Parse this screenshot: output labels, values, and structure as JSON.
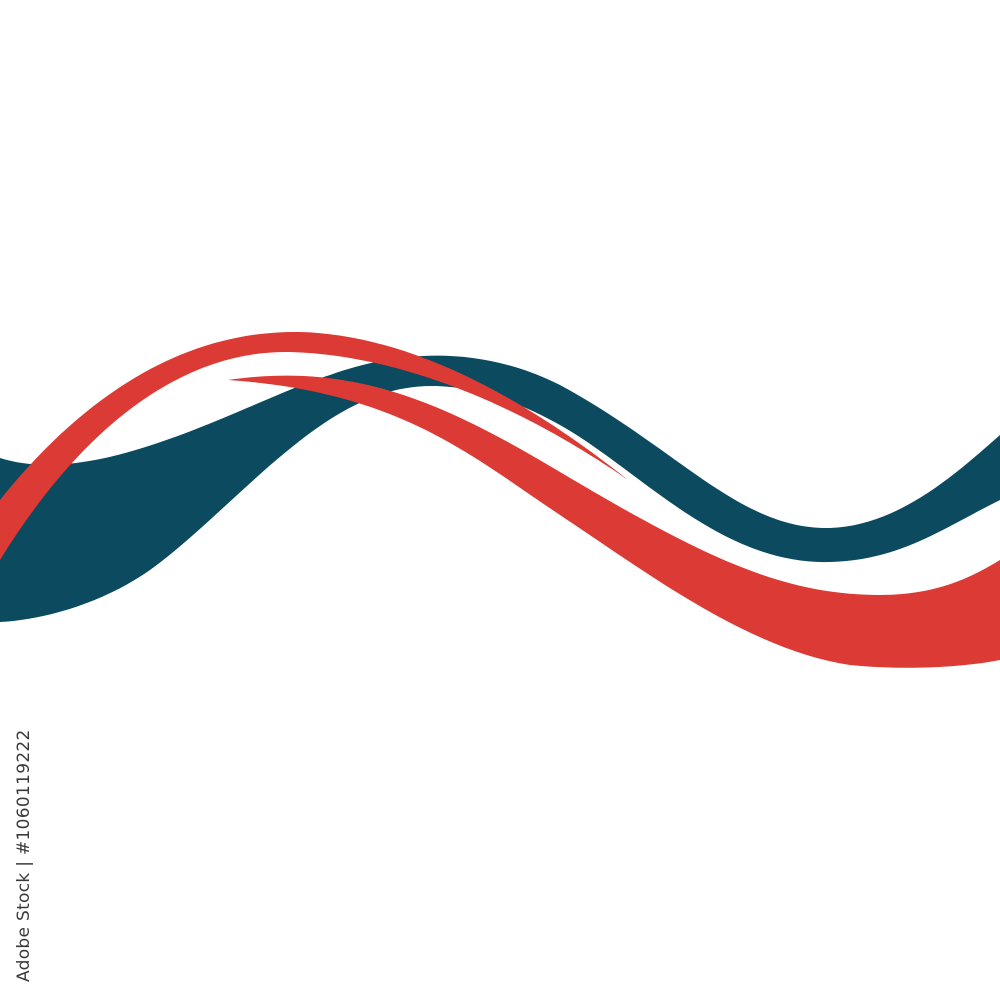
{
  "colors": {
    "teal": "#0b4a5f",
    "red": "#dc3a34",
    "background": "#ffffff"
  },
  "watermark": {
    "text": "Adobe Stock | #1060119222"
  }
}
